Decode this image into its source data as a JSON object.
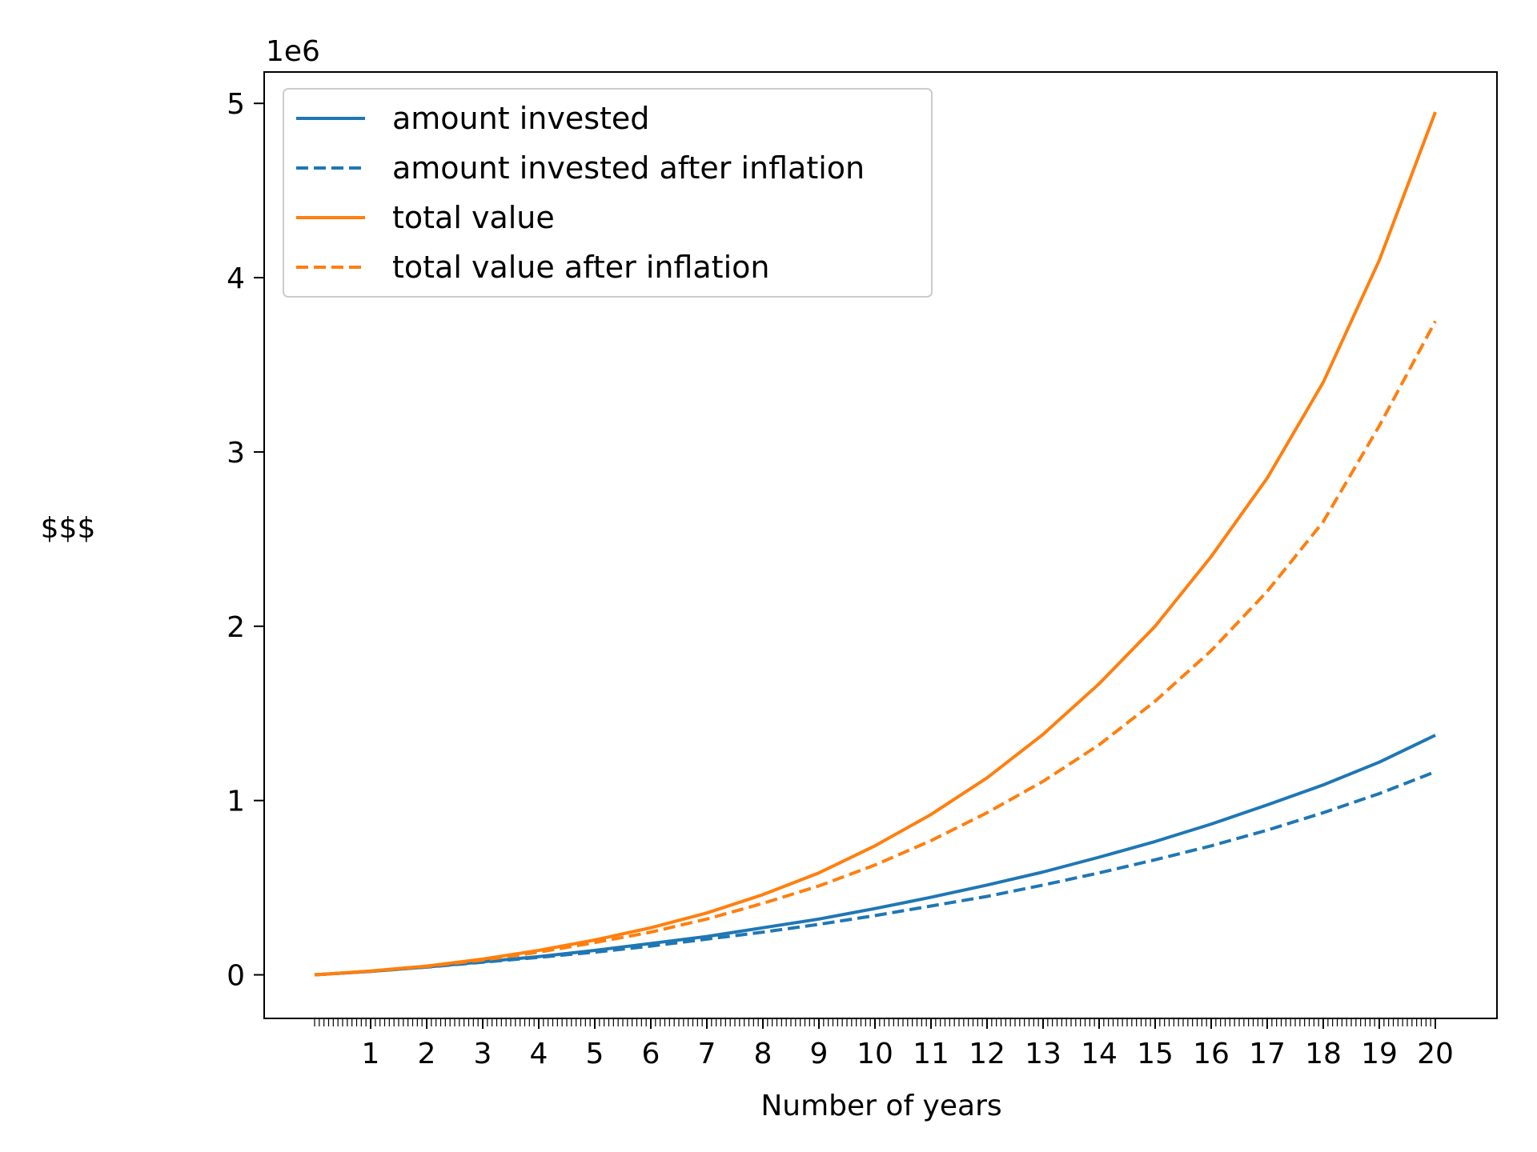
{
  "chart_data": {
    "type": "line",
    "title": "",
    "xlabel": "Number of years",
    "ylabel": "$$$",
    "y_offset_label": "1e6",
    "xlim": [
      -0.9,
      21.1
    ],
    "ylim": [
      -0.25,
      5.18
    ],
    "x_ticks": [
      "1",
      "2",
      "3",
      "4",
      "5",
      "6",
      "7",
      "8",
      "9",
      "10",
      "11",
      "12",
      "13",
      "14",
      "15",
      "16",
      "17",
      "18",
      "19",
      "20"
    ],
    "y_ticks": [
      "0",
      "1",
      "2",
      "3",
      "4",
      "5"
    ],
    "minor_ticks_per_year": 12,
    "grid": false,
    "legend_position": "upper-left",
    "x": [
      0,
      1,
      2,
      3,
      4,
      5,
      6,
      7,
      8,
      9,
      10,
      11,
      12,
      13,
      14,
      15,
      16,
      17,
      18,
      19,
      20
    ],
    "series": [
      {
        "name": "amount invested",
        "color": "#1f77b4",
        "dash": "solid",
        "values": [
          0.0,
          0.02,
          0.045,
          0.075,
          0.105,
          0.14,
          0.18,
          0.22,
          0.27,
          0.32,
          0.38,
          0.445,
          0.515,
          0.59,
          0.675,
          0.765,
          0.865,
          0.975,
          1.09,
          1.22,
          1.375
        ]
      },
      {
        "name": "amount invested after inflation",
        "color": "#1f77b4",
        "dash": "dashed",
        "values": [
          0.0,
          0.02,
          0.044,
          0.072,
          0.1,
          0.13,
          0.165,
          0.205,
          0.245,
          0.29,
          0.34,
          0.395,
          0.45,
          0.515,
          0.585,
          0.66,
          0.74,
          0.83,
          0.93,
          1.04,
          1.165
        ]
      },
      {
        "name": "total value",
        "color": "#ff7f0e",
        "dash": "solid",
        "values": [
          0.0,
          0.022,
          0.05,
          0.09,
          0.14,
          0.2,
          0.27,
          0.355,
          0.46,
          0.585,
          0.74,
          0.92,
          1.13,
          1.38,
          1.67,
          2.0,
          2.4,
          2.85,
          3.4,
          4.1,
          4.95
        ]
      },
      {
        "name": "total value after inflation",
        "color": "#ff7f0e",
        "dash": "dashed",
        "values": [
          0.0,
          0.021,
          0.048,
          0.085,
          0.13,
          0.185,
          0.245,
          0.32,
          0.41,
          0.51,
          0.63,
          0.77,
          0.93,
          1.11,
          1.32,
          1.57,
          1.86,
          2.2,
          2.6,
          3.15,
          3.75
        ]
      }
    ]
  }
}
